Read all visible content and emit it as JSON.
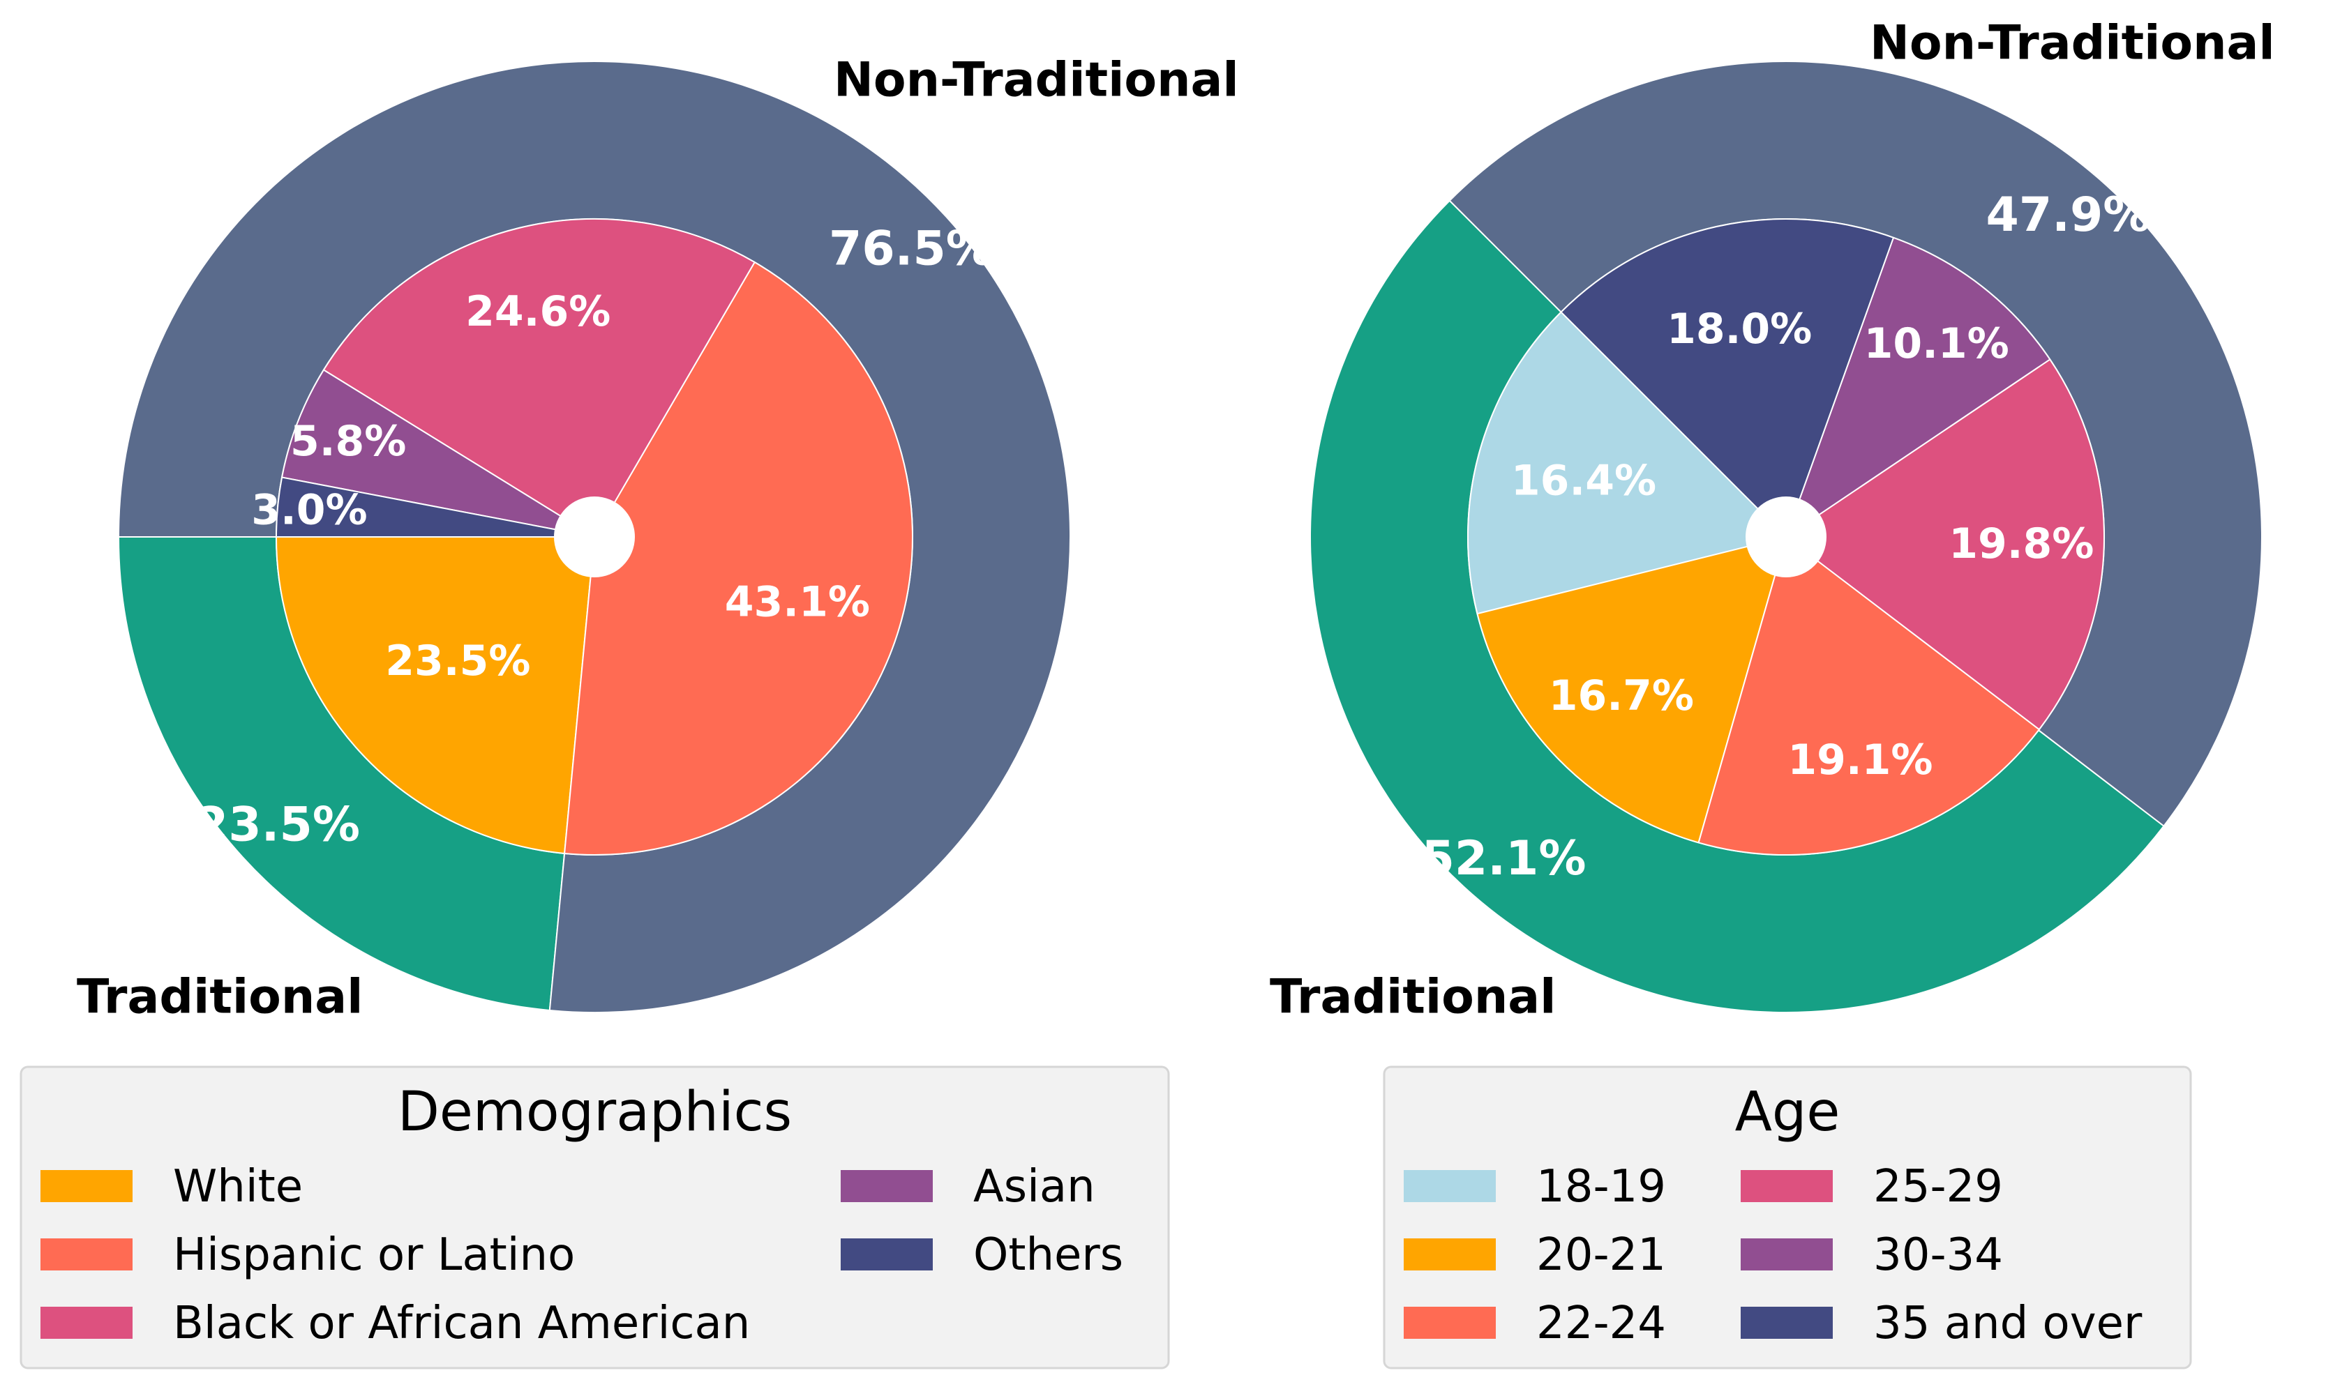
{
  "chart_data": [
    {
      "type": "pie",
      "variant": "nested-donut",
      "outer": {
        "labels": [
          "Traditional",
          "Non-Traditional"
        ],
        "values": [
          23.5,
          76.5
        ],
        "value_labels": [
          "23.5%",
          "76.5%"
        ],
        "colors": [
          "#16a085",
          "#5a6b8c"
        ]
      },
      "inner": {
        "labels": [
          "White",
          "Hispanic or Latino",
          "Black or African American",
          "Asian",
          "Others"
        ],
        "values": [
          23.5,
          43.1,
          24.6,
          5.8,
          3.0
        ],
        "value_labels": [
          "23.5%",
          "43.1%",
          "24.6%",
          "5.8%",
          "3.0%"
        ],
        "colors": [
          "#ffa500",
          "#ff6b53",
          "#dd517f",
          "#914e91",
          "#424a82"
        ]
      },
      "legend": {
        "title": "Demographics",
        "columns": 2,
        "placement": "bottom",
        "items": [
          "White",
          "Hispanic or Latino",
          "Black or African American",
          "Asian",
          "Others"
        ]
      }
    },
    {
      "type": "pie",
      "variant": "nested-donut",
      "outer": {
        "labels": [
          "Traditional",
          "Non-Traditional"
        ],
        "values": [
          52.1,
          47.9
        ],
        "value_labels": [
          "52.1%",
          "47.9%"
        ],
        "colors": [
          "#16a085",
          "#5a6b8c"
        ]
      },
      "inner": {
        "labels": [
          "18-19",
          "20-21",
          "22-24",
          "25-29",
          "30-34",
          "35 and over"
        ],
        "values": [
          16.4,
          16.7,
          19.1,
          19.8,
          10.1,
          18.0
        ],
        "value_labels": [
          "16.4%",
          "16.7%",
          "19.1%",
          "19.8%",
          "10.1%",
          "18.0%"
        ],
        "colors": [
          "#add8e6",
          "#ffa500",
          "#ff6b53",
          "#dd517f",
          "#914e91",
          "#424a82"
        ]
      },
      "legend": {
        "title": "Age",
        "columns": 2,
        "placement": "bottom",
        "items": [
          "18-19",
          "20-21",
          "22-24",
          "25-29",
          "30-34",
          "35 and over"
        ]
      }
    }
  ]
}
